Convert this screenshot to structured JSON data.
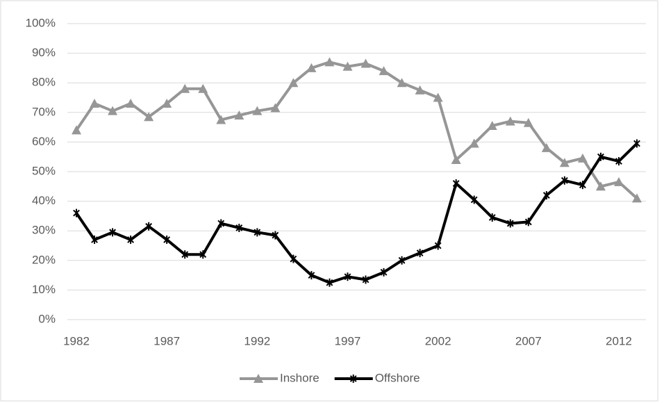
{
  "chart_data": {
    "type": "line",
    "x": [
      1982,
      1983,
      1984,
      1985,
      1986,
      1987,
      1988,
      1989,
      1990,
      1991,
      1992,
      1993,
      1994,
      1995,
      1996,
      1997,
      1998,
      1999,
      2000,
      2001,
      2002,
      2003,
      2004,
      2005,
      2006,
      2007,
      2008,
      2009,
      2010,
      2011,
      2012,
      2013
    ],
    "series": [
      {
        "name": "Inshore",
        "color": "#969696",
        "marker": "triangle",
        "values": [
          64,
          73,
          70.5,
          73,
          68.5,
          73,
          78,
          78,
          67.5,
          69,
          70.5,
          71.5,
          80,
          85,
          87,
          85.5,
          86.5,
          84,
          80,
          77.5,
          75,
          54,
          59.5,
          65.5,
          67,
          66.5,
          58,
          53,
          54.5,
          45,
          46.5,
          41
        ]
      },
      {
        "name": "Offshore",
        "color": "#000000",
        "marker": "star",
        "values": [
          36,
          27,
          29.5,
          27,
          31.5,
          27,
          22,
          22,
          32.5,
          31,
          29.5,
          28.5,
          20.5,
          15,
          12.5,
          14.5,
          13.5,
          16,
          20,
          22.5,
          25,
          46,
          40.5,
          34.5,
          32.5,
          33,
          42,
          47,
          45.5,
          55,
          53.5,
          59.5
        ]
      }
    ],
    "xlim": [
      1981.5,
      2013.5
    ],
    "xticks": [
      1982,
      1987,
      1992,
      1997,
      2002,
      2007,
      2012
    ],
    "ylim": [
      0,
      100
    ],
    "yticks": [
      {
        "value": 0,
        "label": "0%"
      },
      {
        "value": 10,
        "label": "10%"
      },
      {
        "value": 20,
        "label": "20%"
      },
      {
        "value": 30,
        "label": "30%"
      },
      {
        "value": 40,
        "label": "40%"
      },
      {
        "value": 50,
        "label": "50%"
      },
      {
        "value": 60,
        "label": "60%"
      },
      {
        "value": 70,
        "label": "70%"
      },
      {
        "value": 80,
        "label": "80%"
      },
      {
        "value": 90,
        "label": "90%"
      },
      {
        "value": 100,
        "label": "100%"
      }
    ],
    "grid": true,
    "legend": "bottom"
  }
}
